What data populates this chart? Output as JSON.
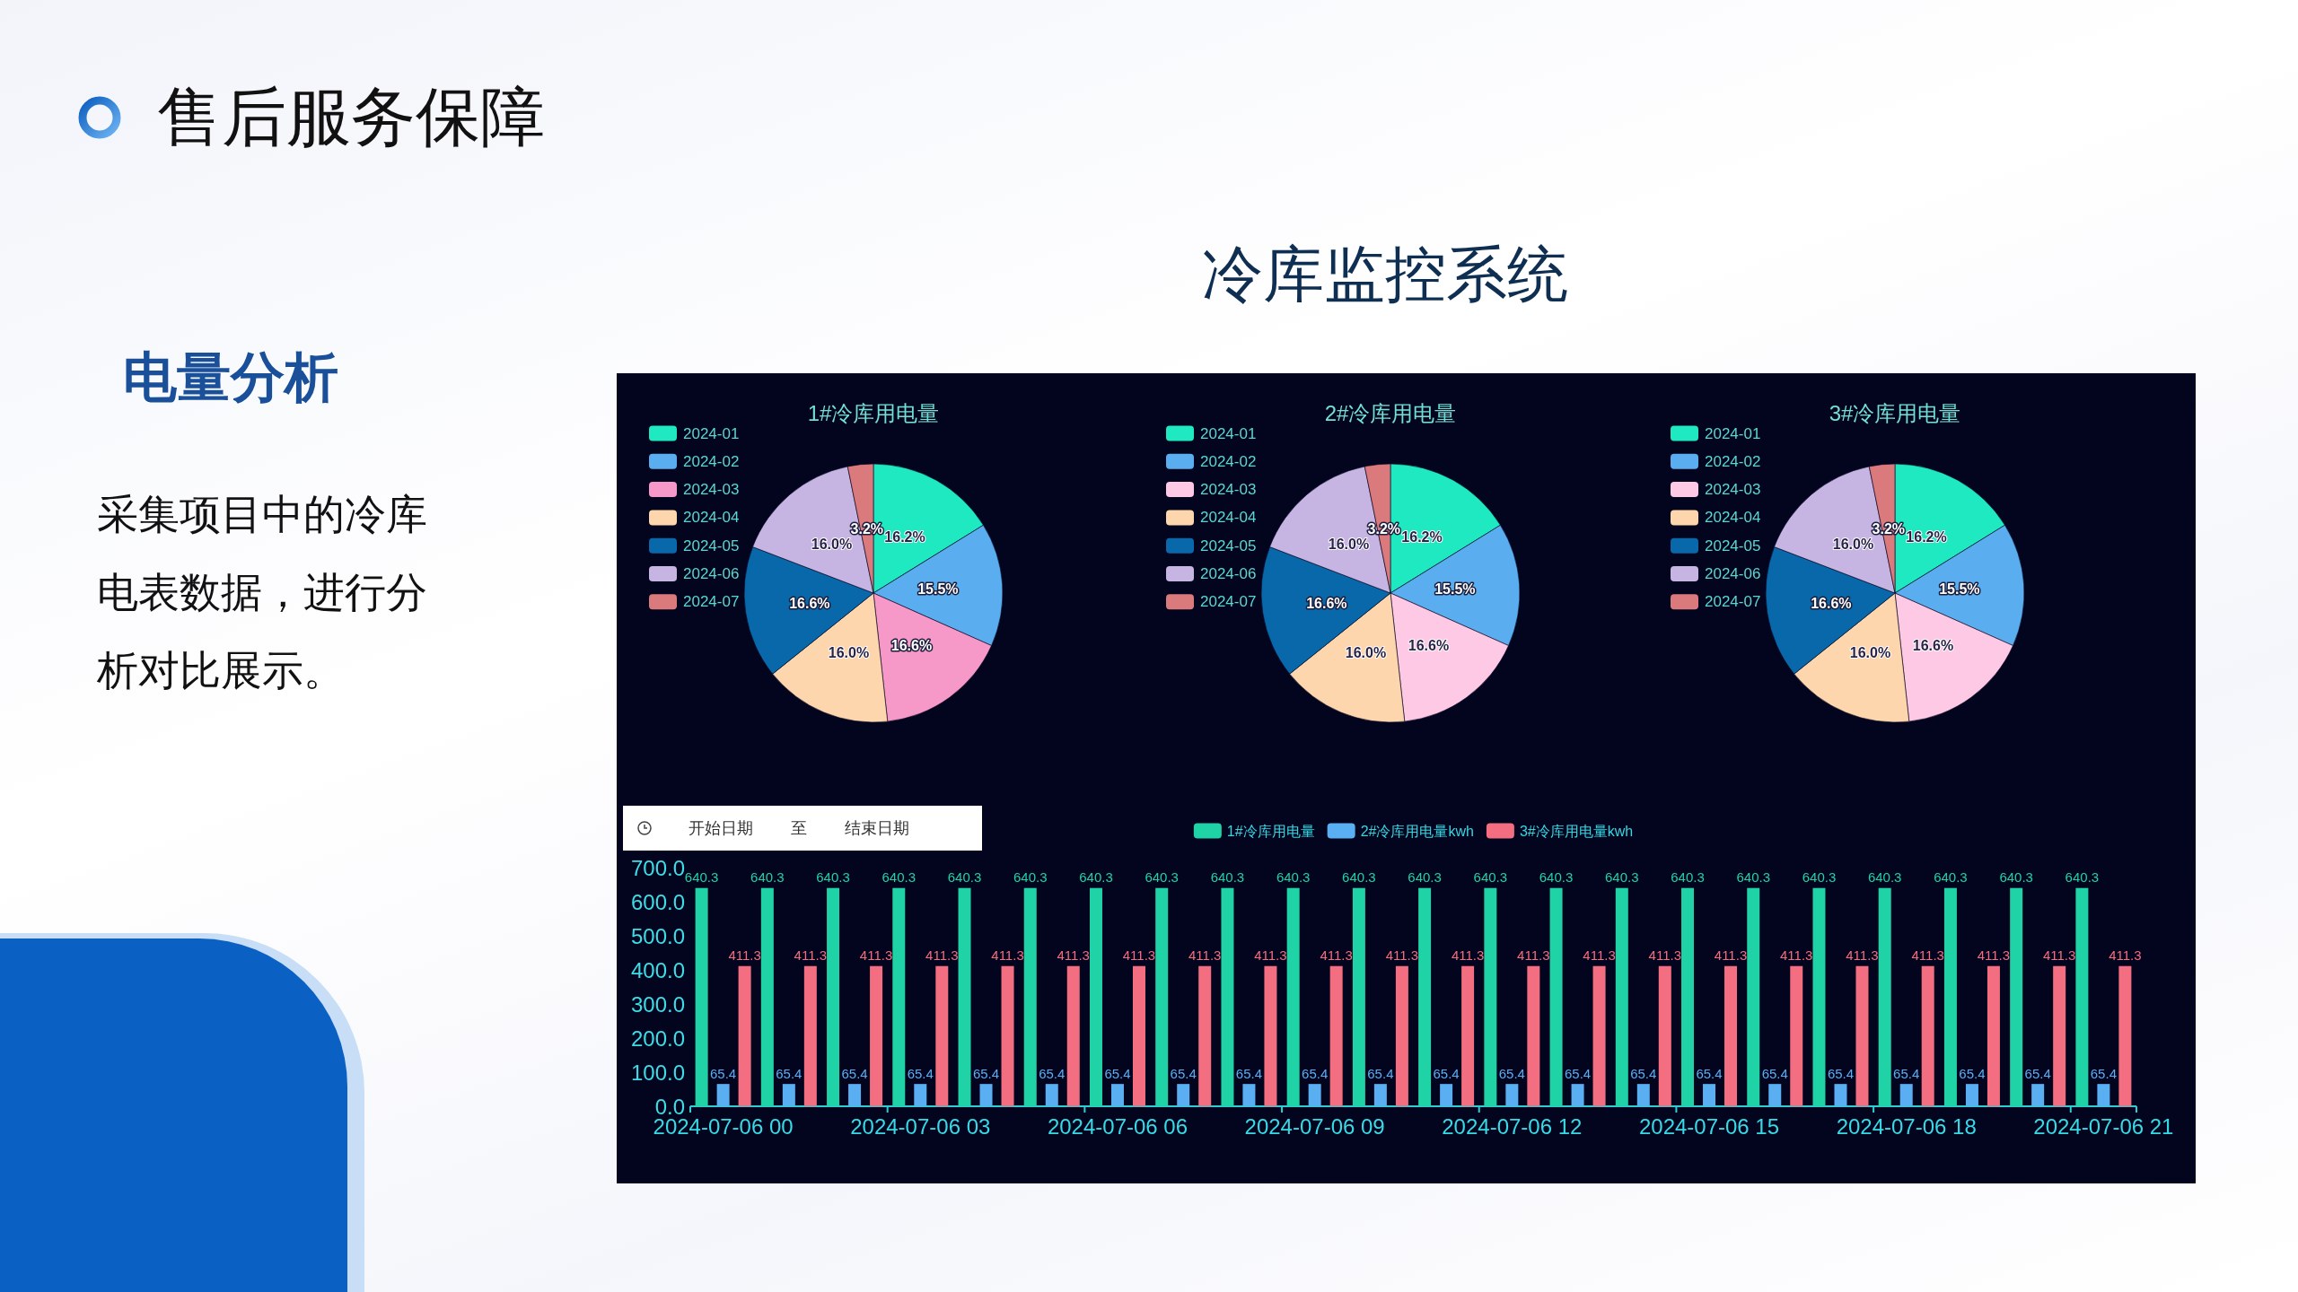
{
  "chart_data": [
    {
      "type": "other",
      "title": "售后服务保障"
    },
    {
      "type": "other",
      "title": "冷库监控系统"
    },
    {
      "type": "other",
      "title": "电量分析",
      "annotations": [
        "采集项目中的冷库电表数据，进行分析对比展示。"
      ]
    },
    {
      "type": "pie",
      "title": "1#冷库用电量",
      "categories": [
        "2024-01",
        "2024-02",
        "2024-03",
        "2024-04",
        "2024-05",
        "2024-06",
        "2024-07"
      ],
      "values": [
        16.2,
        15.5,
        16.6,
        16.0,
        16.6,
        16.0,
        3.2
      ],
      "value_labels": [
        "16.2%",
        "15.5%",
        "16.6%",
        "16.0%",
        "16.6%",
        "16.0%",
        "3.2%"
      ],
      "colors": [
        "#1ee9c1",
        "#5aaeef",
        "#f699c8",
        "#fdd6ad",
        "#0868aa",
        "#c6b5e3",
        "#da7a7c"
      ],
      "legend": "top left"
    },
    {
      "type": "pie",
      "title": "2#冷库用电量",
      "categories": [
        "2024-01",
        "2024-02",
        "2024-03",
        "2024-04",
        "2024-05",
        "2024-06",
        "2024-07"
      ],
      "values": [
        16.2,
        15.5,
        16.6,
        16.0,
        16.6,
        16.0,
        3.2
      ],
      "value_labels": [
        "16.2%",
        "15.5%",
        "16.6%",
        "16.0%",
        "16.6%",
        "16.0%",
        "3.2%"
      ],
      "colors": [
        "#1ee9c1",
        "#5aaeef",
        "#fdc9e5",
        "#fdd6ad",
        "#0868aa",
        "#c6b5e3",
        "#da7a7c"
      ],
      "legend": "top left"
    },
    {
      "type": "pie",
      "title": "3#冷库用电量",
      "categories": [
        "2024-01",
        "2024-02",
        "2024-03",
        "2024-04",
        "2024-05",
        "2024-06",
        "2024-07"
      ],
      "values": [
        16.2,
        15.5,
        16.6,
        16.0,
        16.6,
        16.0,
        3.2
      ],
      "value_labels": [
        "16.2%",
        "15.5%",
        "16.6%",
        "16.0%",
        "16.6%",
        "16.0%",
        "3.2%"
      ],
      "colors": [
        "#1ee9c1",
        "#5aaeef",
        "#fdc9e5",
        "#fdd6ad",
        "#0868aa",
        "#c6b5e3",
        "#da7a7c"
      ],
      "legend": "top left"
    },
    {
      "type": "bar",
      "annotations": [
        "开始日期",
        "至",
        "结束日期"
      ],
      "categories": [
        "2024-07-06 00",
        null,
        null,
        "2024-07-06 03",
        null,
        null,
        "2024-07-06 06",
        null,
        null,
        "2024-07-06 09",
        null,
        null,
        "2024-07-06 12",
        null,
        null,
        "2024-07-06 15",
        null,
        null,
        "2024-07-06 18",
        null,
        null,
        "2024-07-06 21"
      ],
      "series": [
        {
          "name": "1#冷库用电量",
          "color": "#1fd3a7",
          "values": [
            640.3,
            640.3,
            640.3,
            640.3,
            640.3,
            640.3,
            640.3,
            640.3,
            640.3,
            640.3,
            640.3,
            640.3,
            640.3,
            640.3,
            640.3,
            640.3,
            640.3,
            640.3,
            640.3,
            640.3,
            640.3,
            640.3
          ]
        },
        {
          "name": "2#冷库用电量kwh",
          "color": "#5aaef2",
          "values": [
            65.4,
            65.4,
            65.4,
            65.4,
            65.4,
            65.4,
            65.4,
            65.4,
            65.4,
            65.4,
            65.4,
            65.4,
            65.4,
            65.4,
            65.4,
            65.4,
            65.4,
            65.4,
            65.4,
            65.4,
            65.4,
            65.4
          ]
        },
        {
          "name": "3#冷库用电量kwh",
          "color": "#f46e81",
          "values": [
            411.3,
            411.3,
            411.3,
            411.3,
            411.3,
            411.3,
            411.3,
            411.3,
            411.3,
            411.3,
            411.3,
            411.3,
            411.3,
            411.3,
            411.3,
            411.3,
            411.3,
            411.3,
            411.3,
            411.3,
            411.3,
            411.3
          ]
        }
      ],
      "ylim": [
        0,
        700
      ],
      "yticks": [
        {
          "value": 0,
          "label": "0.0"
        },
        {
          "value": 100,
          "label": "100.0"
        },
        {
          "value": 200,
          "label": "200.0"
        },
        {
          "value": 300,
          "label": "300.0"
        },
        {
          "value": 400,
          "label": "400.0"
        },
        {
          "value": 500,
          "label": "500.0"
        },
        {
          "value": 600,
          "label": "600.0"
        },
        {
          "value": 700,
          "label": "700.0"
        }
      ],
      "data_labels": true,
      "legend": "top"
    }
  ]
}
